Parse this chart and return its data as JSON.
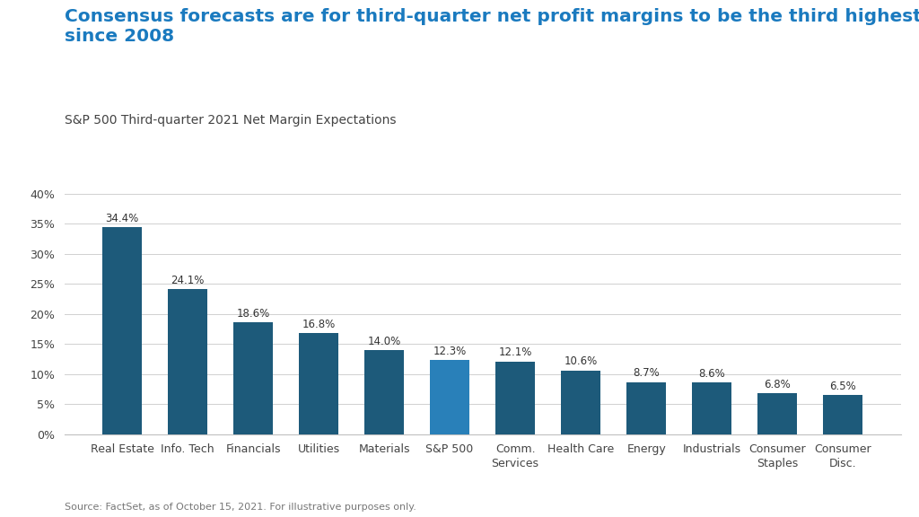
{
  "title": "Consensus forecasts are for third-quarter net profit margins to be the third highest\nsince 2008",
  "subtitle": "S&P 500 Third-quarter 2021 Net Margin Expectations",
  "source": "Source: FactSet, as of October 15, 2021. For illustrative purposes only.",
  "categories": [
    "Real Estate",
    "Info. Tech",
    "Financials",
    "Utilities",
    "Materials",
    "S&P 500",
    "Comm.\nServices",
    "Health Care",
    "Energy",
    "Industrials",
    "Consumer\nStaples",
    "Consumer\nDisc."
  ],
  "values": [
    34.4,
    24.1,
    18.6,
    16.8,
    14.0,
    12.3,
    12.1,
    10.6,
    8.7,
    8.6,
    6.8,
    6.5
  ],
  "bar_colors": [
    "#1d5a7a",
    "#1d5a7a",
    "#1d5a7a",
    "#1d5a7a",
    "#1d5a7a",
    "#2980b9",
    "#1d5a7a",
    "#1d5a7a",
    "#1d5a7a",
    "#1d5a7a",
    "#1d5a7a",
    "#1d5a7a"
  ],
  "ylim": [
    0,
    43
  ],
  "yticks": [
    0,
    5,
    10,
    15,
    20,
    25,
    30,
    35,
    40
  ],
  "background_color": "#ffffff",
  "title_color": "#1a7abf",
  "subtitle_color": "#444444",
  "source_color": "#777777",
  "label_fontsize": 8.5,
  "title_fontsize": 14.5,
  "subtitle_fontsize": 10,
  "source_fontsize": 8
}
